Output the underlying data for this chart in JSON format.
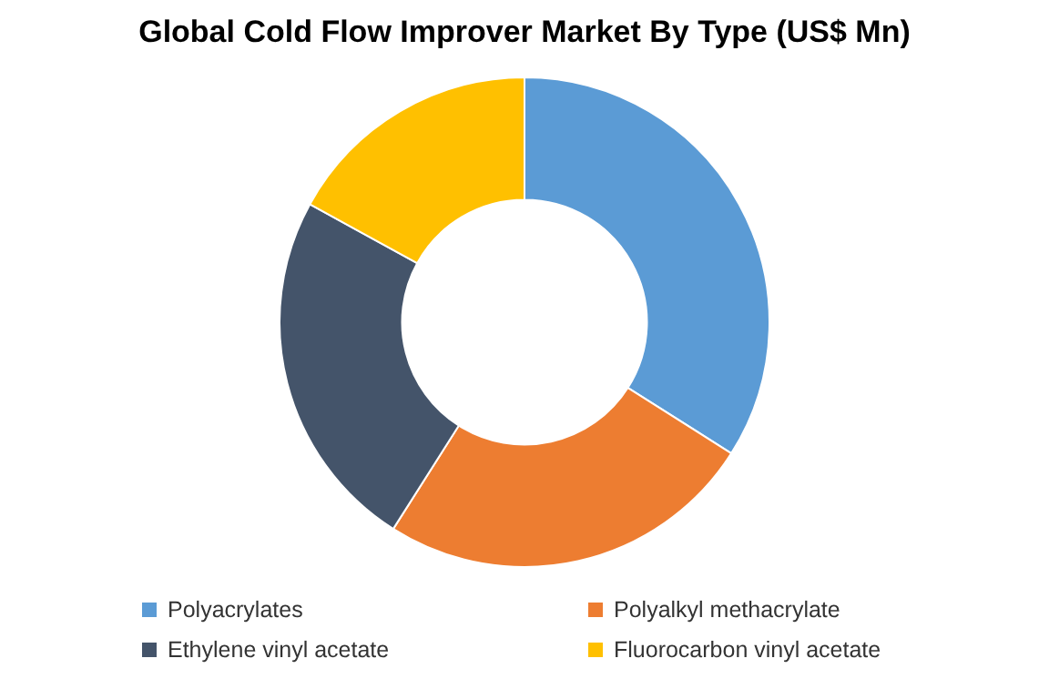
{
  "chart_data": {
    "type": "donut",
    "title": "Global Cold Flow Improver Market By Type (US$ Mn)",
    "categories": [
      "Polyacrylates",
      "Polyalkyl methacrylate",
      "Ethylene vinyl acetate",
      "Fluorocarbon vinyl acetate"
    ],
    "values": [
      34,
      25,
      24,
      17
    ],
    "colors": [
      "#5b9bd5",
      "#ed7d31",
      "#44546a",
      "#ffc000"
    ],
    "legend": "bottom"
  }
}
